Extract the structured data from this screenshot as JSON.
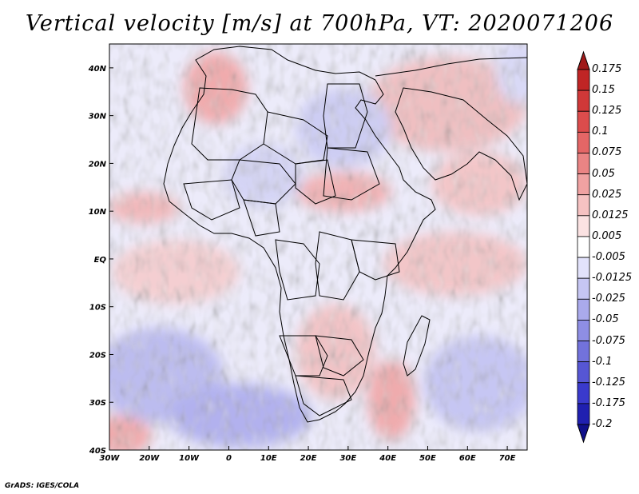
{
  "title": "Vertical velocity [m/s] at 700hPa, VT: 2020071206",
  "credit": "GrADS: IGES/COLA",
  "map": {
    "lon_range": [
      -30,
      75
    ],
    "lat_range": [
      -40,
      45
    ],
    "x_ticks": [
      "30W",
      "20W",
      "10W",
      "0",
      "10E",
      "20E",
      "30E",
      "40E",
      "50E",
      "60E",
      "70E"
    ],
    "y_ticks": [
      "40N",
      "30N",
      "20N",
      "10N",
      "EQ",
      "10S",
      "20S",
      "30S",
      "40S"
    ]
  },
  "colorbar": {
    "levels": [
      "0.175",
      "0.15",
      "0.125",
      "0.1",
      "0.075",
      "0.05",
      "0.025",
      "0.0125",
      "0.005",
      "-0.005",
      "-0.0125",
      "-0.025",
      "-0.05",
      "-0.075",
      "-0.1",
      "-0.125",
      "-0.175",
      "-0.2"
    ],
    "colors": [
      "#a01a1a",
      "#c02525",
      "#d03838",
      "#dc4c4c",
      "#e46666",
      "#ea8484",
      "#f0a2a2",
      "#f6c2c2",
      "#fbe2e2",
      "#ffffff",
      "#e2e2fb",
      "#c6c6f3",
      "#aaaaec",
      "#8e8ee4",
      "#7272dc",
      "#5656d4",
      "#3a3acc",
      "#2020b0",
      "#10108a"
    ]
  }
}
